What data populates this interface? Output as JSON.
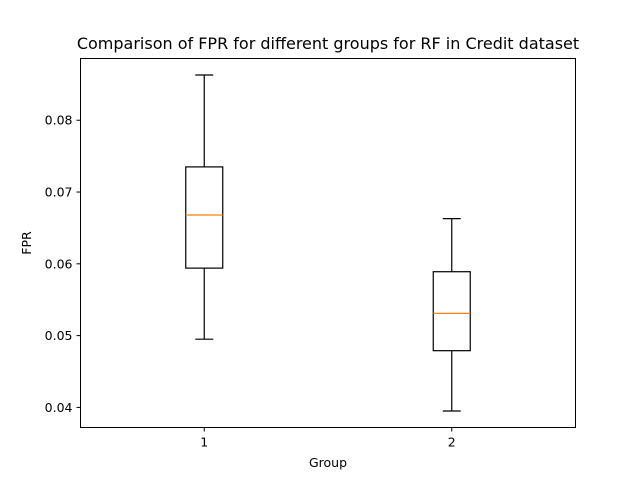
{
  "chart_data": {
    "type": "box",
    "title": "Comparison of FPR for different groups for RF in Credit dataset",
    "xlabel": "Group",
    "ylabel": "FPR",
    "categories": [
      "1",
      "2"
    ],
    "boxes": [
      {
        "name": "1",
        "whisker_low": 0.0495,
        "q1": 0.0594,
        "median": 0.0668,
        "q3": 0.0735,
        "whisker_high": 0.0863
      },
      {
        "name": "2",
        "whisker_low": 0.0395,
        "q1": 0.0479,
        "median": 0.0531,
        "q3": 0.0589,
        "whisker_high": 0.0663
      }
    ],
    "ylim": [
      0.0372,
      0.0886
    ],
    "yticks": [
      {
        "value": 0.04,
        "label": "0.04"
      },
      {
        "value": 0.05,
        "label": "0.05"
      },
      {
        "value": 0.06,
        "label": "0.06"
      },
      {
        "value": 0.07,
        "label": "0.07"
      },
      {
        "value": 0.08,
        "label": "0.08"
      }
    ],
    "grid": false,
    "colors": {
      "box": "#000000",
      "median": "#ff7f0e"
    }
  }
}
